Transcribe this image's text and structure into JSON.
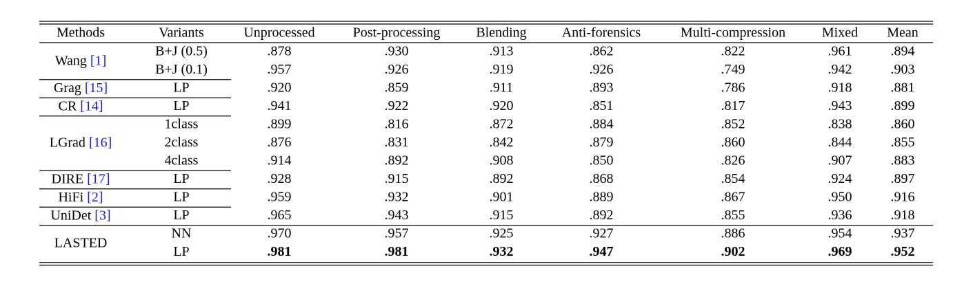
{
  "table": {
    "header": [
      "Methods",
      "Variants",
      "Unprocessed",
      "Post-processing",
      "Blending",
      "Anti-forensics",
      "Multi-compression",
      "Mixed",
      "Mean"
    ],
    "groups": [
      {
        "method": "Wang",
        "ref": "[1]",
        "rows": [
          {
            "variant": "B+J (0.5)",
            "values": [
              ".878",
              ".930",
              ".913",
              ".862",
              ".822",
              ".961",
              ".894"
            ]
          },
          {
            "variant": "B+J (0.1)",
            "values": [
              ".957",
              ".926",
              ".919",
              ".926",
              ".749",
              ".942",
              ".903"
            ]
          }
        ]
      },
      {
        "method": "Grag",
        "ref": "[15]",
        "rows": [
          {
            "variant": "LP",
            "values": [
              ".920",
              ".859",
              ".911",
              ".893",
              ".786",
              ".918",
              ".881"
            ]
          }
        ]
      },
      {
        "method": "CR",
        "ref": "[14]",
        "rows": [
          {
            "variant": "LP",
            "values": [
              ".941",
              ".922",
              ".920",
              ".851",
              ".817",
              ".943",
              ".899"
            ]
          }
        ]
      },
      {
        "method": "LGrad",
        "ref": "[16]",
        "rows": [
          {
            "variant": "1class",
            "values": [
              ".899",
              ".816",
              ".872",
              ".884",
              ".852",
              ".838",
              ".860"
            ]
          },
          {
            "variant": "2class",
            "values": [
              ".876",
              ".831",
              ".842",
              ".879",
              ".860",
              ".844",
              ".855"
            ]
          },
          {
            "variant": "4class",
            "values": [
              ".914",
              ".892",
              ".908",
              ".850",
              ".826",
              ".907",
              ".883"
            ]
          }
        ]
      },
      {
        "method": "DIRE",
        "ref": "[17]",
        "rows": [
          {
            "variant": "LP",
            "values": [
              ".928",
              ".915",
              ".892",
              ".868",
              ".854",
              ".924",
              ".897"
            ]
          }
        ]
      },
      {
        "method": "HiFi",
        "ref": "[2]",
        "rows": [
          {
            "variant": "LP",
            "values": [
              ".959",
              ".932",
              ".901",
              ".889",
              ".867",
              ".950",
              ".916"
            ]
          }
        ]
      },
      {
        "method": "UniDet",
        "ref": "[3]",
        "rows": [
          {
            "variant": "LP",
            "values": [
              ".965",
              ".943",
              ".915",
              ".892",
              ".855",
              ".936",
              ".918"
            ]
          }
        ]
      },
      {
        "method": "LASTED",
        "rows": [
          {
            "variant": "NN",
            "values": [
              ".970",
              ".957",
              ".925",
              ".927",
              ".886",
              ".954",
              ".937"
            ]
          },
          {
            "variant": "LP",
            "bold": true,
            "values": [
              ".981",
              ".981",
              ".932",
              ".947",
              ".902",
              ".969",
              ".952"
            ]
          }
        ]
      }
    ]
  }
}
